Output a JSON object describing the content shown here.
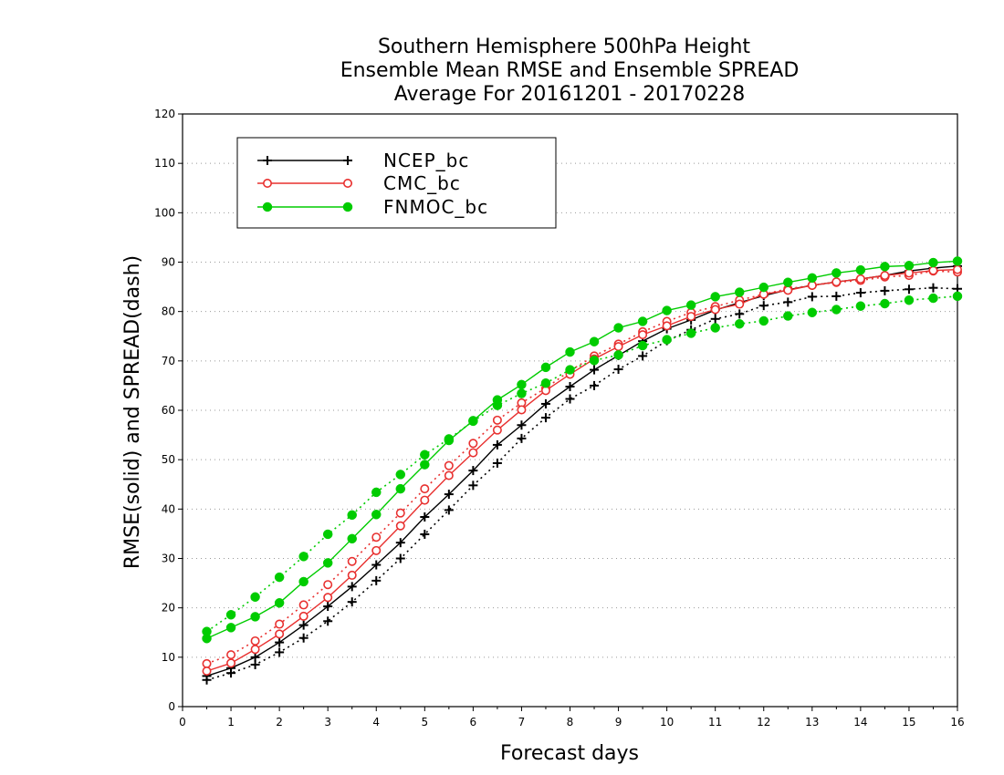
{
  "chart_data": {
    "type": "line",
    "title_lines": [
      "Southern Hemisphere 500hPa Height",
      "Ensemble Mean RMSE and Ensemble SPREAD",
      "Average For 20161201 - 20170228"
    ],
    "xlabel": "Forecast days",
    "ylabel": "RMSE(solid) and SPREAD(dash)",
    "xlim": [
      0,
      16
    ],
    "ylim": [
      0,
      120
    ],
    "xticks": [
      0,
      1,
      2,
      3,
      4,
      5,
      6,
      7,
      8,
      9,
      10,
      11,
      12,
      13,
      14,
      15,
      16
    ],
    "yticks": [
      0,
      10,
      20,
      30,
      40,
      50,
      60,
      70,
      80,
      90,
      100,
      110,
      120
    ],
    "grid": "horizontal dotted",
    "legend_position": "top-left",
    "x": [
      0.5,
      1,
      1.5,
      2,
      2.5,
      3,
      3.5,
      4,
      4.5,
      5,
      5.5,
      6,
      6.5,
      7,
      7.5,
      8,
      8.5,
      9,
      9.5,
      10,
      10.5,
      11,
      11.5,
      12,
      12.5,
      13,
      13.5,
      14,
      14.5,
      15,
      15.5,
      16
    ],
    "series": [
      {
        "name": "NCEP_bc",
        "color": "#000000",
        "marker": "plus",
        "rmse": [
          6.2,
          7.8,
          10,
          13,
          16.5,
          20.3,
          24.3,
          28.7,
          33.2,
          38.4,
          43,
          47.8,
          53,
          57,
          61.3,
          64.8,
          68.2,
          71.1,
          74,
          76.5,
          78.3,
          80.3,
          81.8,
          83.2,
          84.4,
          85.3,
          86,
          86.6,
          87.3,
          88.2,
          88.8,
          89.2
        ],
        "spread": [
          5.4,
          6.8,
          8.5,
          11,
          13.9,
          17.3,
          21.2,
          25.5,
          30,
          34.9,
          39.8,
          44.8,
          49.3,
          54.3,
          58.5,
          62.3,
          65,
          68.3,
          71,
          74.1,
          76.3,
          78.5,
          79.5,
          81.2,
          81.9,
          83,
          83.1,
          83.8,
          84.2,
          84.5,
          84.8,
          84.6
        ]
      },
      {
        "name": "CMC_bc",
        "color": "#e8302f",
        "marker": "open-circle",
        "rmse": [
          7.2,
          8.8,
          11.6,
          14.7,
          18.3,
          22.1,
          26.6,
          31.6,
          36.6,
          41.8,
          46.8,
          51.4,
          56,
          60.1,
          64,
          67.3,
          70.4,
          72.9,
          75.3,
          77.1,
          79,
          80.4,
          81.5,
          83.5,
          84.3,
          85.3,
          86,
          86.6,
          87.3,
          87.8,
          88.3,
          88.5
        ],
        "spread": [
          8.7,
          10.5,
          13.3,
          16.7,
          20.6,
          24.7,
          29.4,
          34.3,
          39.2,
          44.1,
          48.8,
          53.3,
          58,
          61.5,
          64.5,
          68,
          71,
          73.4,
          75.9,
          78,
          79.8,
          81,
          82.3,
          83.5,
          84.6,
          85.3,
          85.9,
          86.3,
          87,
          87.3,
          88.2,
          88
        ]
      },
      {
        "name": "FNMOC_bc",
        "color": "#00cc00",
        "marker": "filled-circle",
        "rmse": [
          13.8,
          16,
          18.2,
          21,
          25.3,
          29.1,
          34,
          38.9,
          44.1,
          49,
          53.9,
          57.9,
          62.1,
          65.2,
          68.7,
          71.8,
          73.9,
          76.7,
          78,
          80.2,
          81.3,
          83,
          83.9,
          84.9,
          85.9,
          86.8,
          87.8,
          88.4,
          89.1,
          89.3,
          89.9,
          90.2
        ],
        "spread": [
          15.2,
          18.6,
          22.2,
          26.2,
          30.4,
          34.9,
          38.8,
          43.4,
          47,
          51,
          54.2,
          57.8,
          61,
          63.4,
          65.5,
          68.2,
          70.1,
          71.2,
          73.1,
          74.3,
          75.6,
          76.7,
          77.5,
          78.1,
          79.1,
          79.8,
          80.4,
          81.1,
          81.6,
          82.3,
          82.7,
          83.1
        ]
      }
    ]
  }
}
